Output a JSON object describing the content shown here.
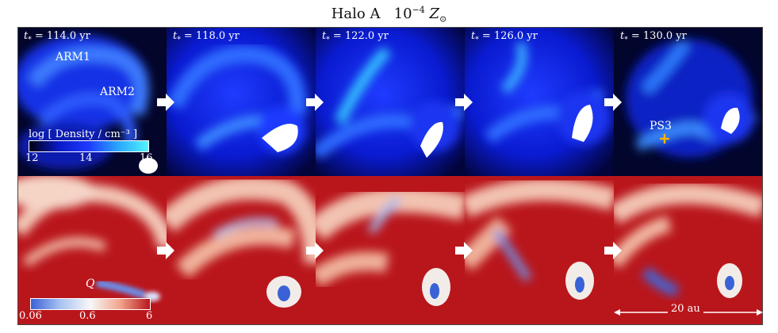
{
  "title": {
    "halo": "Halo A",
    "metal_base": "10",
    "metal_exp": "−4",
    "metal_sym": "Z",
    "metal_sub": "⊙"
  },
  "times": [
    "= 114.0 yr",
    "= 118.0 yr",
    "= 122.0 yr",
    "= 126.0 yr",
    "= 130.0 yr"
  ],
  "time_symbol": "t",
  "time_sub": "*",
  "labels": {
    "arm1": "ARM1",
    "arm2": "ARM2",
    "ps3": "PS3",
    "q": "Q"
  },
  "density_colorbar": {
    "label": "log [ Density / cm⁻³ ]",
    "ticks": [
      "12",
      "14",
      "16"
    ]
  },
  "q_colorbar": {
    "ticks": [
      "0.06",
      "0.6",
      "6"
    ]
  },
  "scale_bar": "20 au",
  "colors": {
    "density_bg": "#000000",
    "density_mid": "#1f3bff",
    "density_hi": "#33e6ff",
    "q_low": "#3a62d6",
    "q_high": "#b9161c",
    "marker": "#ffb300"
  },
  "icons": [
    "right-arrow-icon",
    "plus-marker-icon"
  ]
}
